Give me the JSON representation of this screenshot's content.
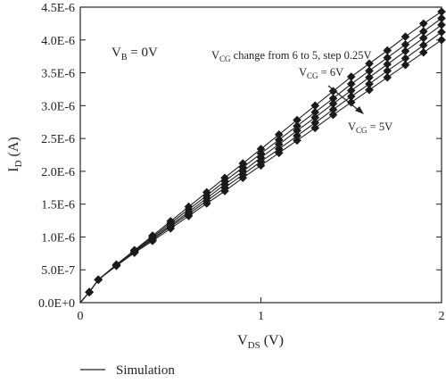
{
  "chart_data": {
    "type": "line",
    "xlabel_main": "V",
    "xlabel_sub": "DS",
    "xlabel_unit": " (V)",
    "ylabel_main": "I",
    "ylabel_sub": "D",
    "ylabel_unit": " (A)",
    "xlim": [
      0,
      2
    ],
    "ylim": [
      0,
      4.5e-06
    ],
    "xticks": [
      0,
      1,
      2
    ],
    "xtick_labels": [
      "0",
      "1",
      "2"
    ],
    "yticks": [
      0,
      5e-07,
      1e-06,
      1.5e-06,
      2e-06,
      2.5e-06,
      3e-06,
      3.5e-06,
      4e-06,
      4.5e-06
    ],
    "ytick_labels": [
      "0.0E+0",
      "5.0E-7",
      "1.0E-6",
      "1.5E-6",
      "2.0E-6",
      "2.5E-6",
      "3.0E-6",
      "3.5E-6",
      "4.0E-6",
      "4.5E-6"
    ],
    "x": [
      0.05,
      0.1,
      0.2,
      0.3,
      0.4,
      0.5,
      0.6,
      0.7,
      0.8,
      0.9,
      1.0,
      1.1,
      1.2,
      1.3,
      1.4,
      1.5,
      1.6,
      1.7,
      1.8,
      1.9,
      2.0
    ],
    "series": [
      {
        "values": [
          1.6e-07,
          3.5e-07,
          5.8e-07,
          8e-07,
          1.02e-06,
          1.24e-06,
          1.46e-06,
          1.68e-06,
          1.9e-06,
          2.12e-06,
          2.34e-06,
          2.56e-06,
          2.78e-06,
          3e-06,
          3.22e-06,
          3.44e-06,
          3.64e-06,
          3.84e-06,
          4.05e-06,
          4.25e-06,
          4.43e-06
        ]
      },
      {
        "values": [
          1.6e-07,
          3.5e-07,
          5.75e-07,
          7.9e-07,
          1e-06,
          1.21e-06,
          1.42e-06,
          1.63e-06,
          1.85e-06,
          2.06e-06,
          2.27e-06,
          2.48e-06,
          2.69e-06,
          2.9e-06,
          3.11e-06,
          3.33e-06,
          3.53e-06,
          3.73e-06,
          3.93e-06,
          4.13e-06,
          4.33e-06
        ]
      },
      {
        "values": [
          1.6e-07,
          3.5e-07,
          5.7e-07,
          7.8e-07,
          9.8e-07,
          1.18e-06,
          1.38e-06,
          1.59e-06,
          1.8e-06,
          2e-06,
          2.21e-06,
          2.41e-06,
          2.62e-06,
          2.82e-06,
          3.03e-06,
          3.23e-06,
          3.43e-06,
          3.63e-06,
          3.83e-06,
          4.03e-06,
          4.23e-06
        ]
      },
      {
        "values": [
          1.6e-07,
          3.5e-07,
          5.65e-07,
          7.7e-07,
          9.6e-07,
          1.16e-06,
          1.35e-06,
          1.55e-06,
          1.75e-06,
          1.95e-06,
          2.15e-06,
          2.34e-06,
          2.54e-06,
          2.74e-06,
          2.94e-06,
          3.14e-06,
          3.33e-06,
          3.53e-06,
          3.72e-06,
          3.92e-06,
          4.12e-06
        ]
      },
      {
        "values": [
          1.6e-07,
          3.5e-07,
          5.6e-07,
          7.6e-07,
          9.4e-07,
          1.13e-06,
          1.32e-06,
          1.51e-06,
          1.7e-06,
          1.9e-06,
          2.09e-06,
          2.28e-06,
          2.47e-06,
          2.66e-06,
          2.86e-06,
          3.05e-06,
          3.24e-06,
          3.43e-06,
          3.62e-06,
          3.81e-06,
          4e-06
        ]
      }
    ],
    "annotations": {
      "vb_main": "V",
      "vb_sub": "B",
      "vb_rest": " = 0V",
      "sweep_main": "V",
      "sweep_sub": "CG",
      "sweep_rest": " change from 6 to 5, step 0.25V",
      "high_main": "V",
      "high_sub": "CG",
      "high_rest": " = 6V",
      "low_main": "V",
      "low_sub": "CG",
      "low_rest": " = 5V"
    },
    "legend": {
      "label": "Simulation",
      "position": "bottom-left"
    },
    "grid": false
  }
}
